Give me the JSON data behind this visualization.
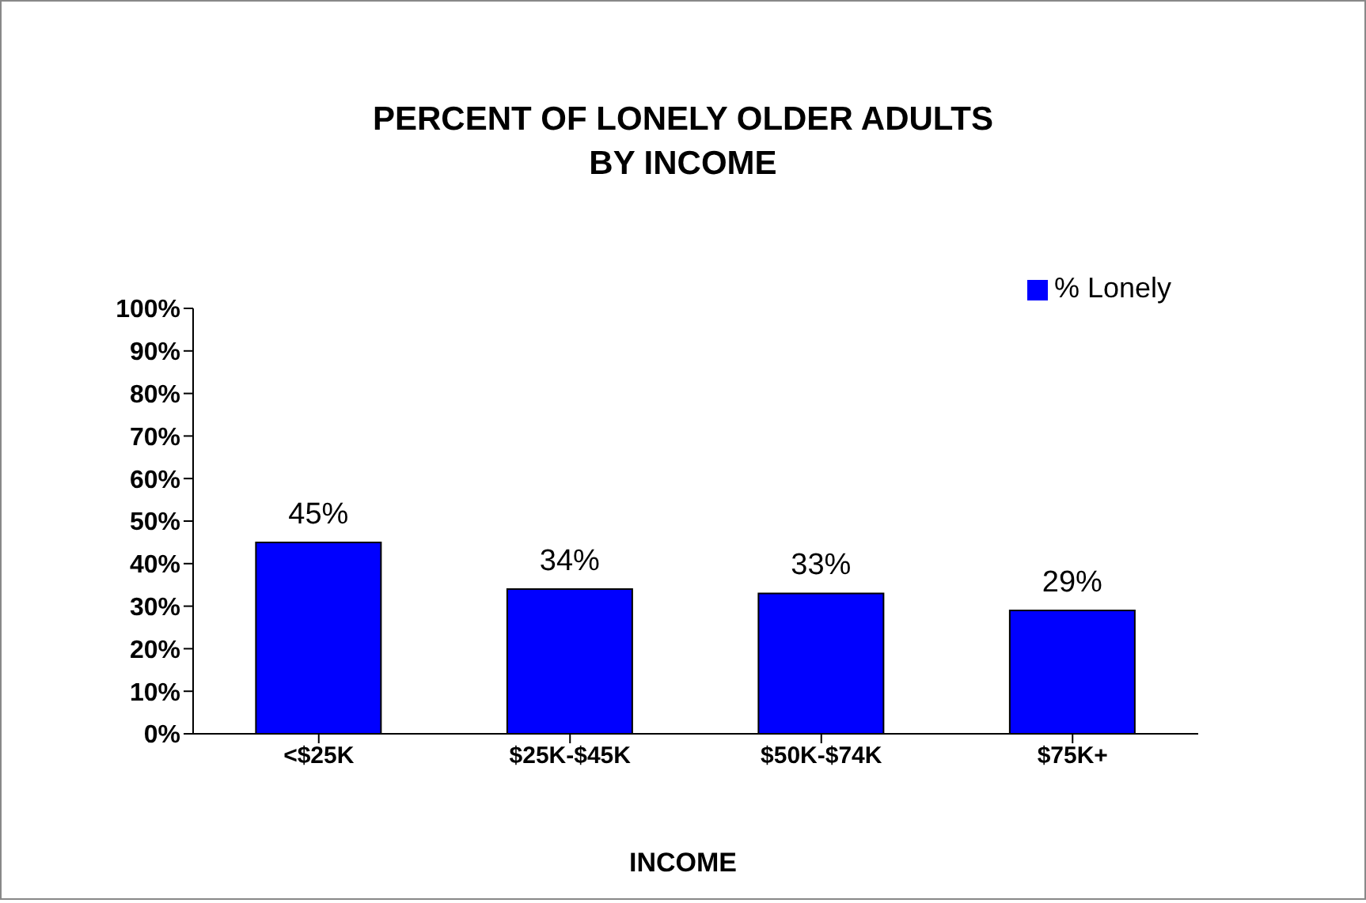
{
  "chart_data": {
    "type": "bar",
    "title": "PERCENT OF LONELY OLDER ADULTS\nBY INCOME",
    "xlabel": "INCOME",
    "categories": [
      "<$25K",
      "$25K-$45K",
      "$50K-$74K",
      "$75K+"
    ],
    "series": [
      {
        "name": "% Lonely",
        "color": "#0000ff",
        "values": [
          45,
          34,
          33,
          29
        ]
      }
    ],
    "value_labels": [
      "45%",
      "34%",
      "33%",
      "29%"
    ],
    "ylim": [
      0,
      100
    ],
    "yticks": [
      {
        "value": 0,
        "label": "0%"
      },
      {
        "value": 10,
        "label": "10%"
      },
      {
        "value": 20,
        "label": "20%"
      },
      {
        "value": 30,
        "label": "30%"
      },
      {
        "value": 40,
        "label": "40%"
      },
      {
        "value": 50,
        "label": "50%"
      },
      {
        "value": 60,
        "label": "60%"
      },
      {
        "value": 70,
        "label": "70%"
      },
      {
        "value": 80,
        "label": "80%"
      },
      {
        "value": 90,
        "label": "90%"
      },
      {
        "value": 100,
        "label": "100%"
      }
    ],
    "grid": false,
    "legend": "top right"
  }
}
